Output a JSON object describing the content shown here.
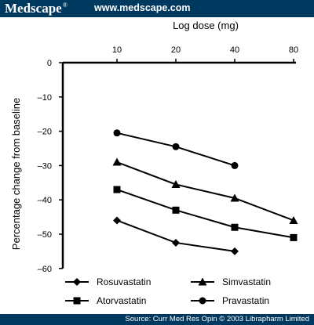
{
  "header": {
    "brand": "Medscape",
    "brand_mark": "®",
    "site_url": "www.medscape.com"
  },
  "footer": {
    "source": "Source: Curr Med Res Opin © 2003 Librapharm Limited"
  },
  "colors": {
    "bar_background": "#00395f",
    "bar_text": "#ffffff",
    "chart_ink": "#000000"
  },
  "chart_data": {
    "type": "line",
    "xlabel": "Log dose (mg)",
    "ylabel": "Percentage change from baseline",
    "x_scale": "log",
    "x_axis_position": "top",
    "x_ticks": [
      10,
      20,
      40,
      80
    ],
    "y_ticks": [
      0,
      -10,
      -20,
      -30,
      -40,
      -50,
      -60
    ],
    "y_tick_labels": [
      "0",
      "–10",
      "–20",
      "–30",
      "–40",
      "–50",
      "–60"
    ],
    "ylim": [
      -60,
      0
    ],
    "grid": false,
    "legend_position": "bottom",
    "series": [
      {
        "name": "Rosuvastatin",
        "marker": "diamond",
        "x": [
          10,
          20,
          40
        ],
        "y": [
          -46,
          -52.5,
          -55
        ]
      },
      {
        "name": "Simvastatin",
        "marker": "triangle",
        "x": [
          10,
          20,
          40,
          80
        ],
        "y": [
          -29,
          -35.5,
          -39.5,
          -46
        ]
      },
      {
        "name": "Atorvastatin",
        "marker": "square",
        "x": [
          10,
          20,
          40,
          80
        ],
        "y": [
          -37,
          -43,
          -48,
          -51
        ]
      },
      {
        "name": "Pravastatin",
        "marker": "circle",
        "x": [
          10,
          20,
          40
        ],
        "y": [
          -20.5,
          -24.5,
          -30
        ]
      }
    ]
  }
}
